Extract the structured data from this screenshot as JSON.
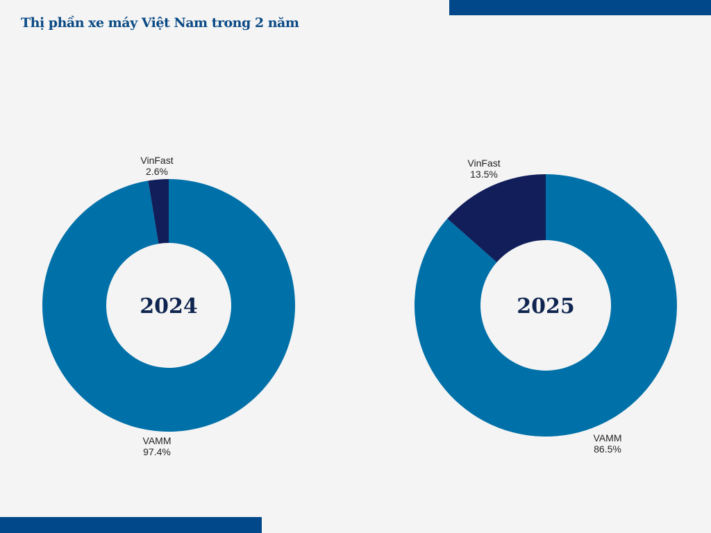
{
  "title": "Thị phần xe máy Việt Nam trong 2 năm",
  "colors": {
    "VAMM": "#0070a8",
    "VinFast": "#111e5a",
    "accent_bar": "#00488a",
    "background": "#f4f4f4"
  },
  "chart_data": [
    {
      "type": "pie",
      "donut": true,
      "center_label": "2024",
      "categories": [
        "VAMM",
        "VinFast"
      ],
      "values": [
        97.4,
        2.6
      ],
      "value_labels": [
        "97.4%",
        "2.6%"
      ]
    },
    {
      "type": "pie",
      "donut": true,
      "center_label": "2025",
      "categories": [
        "VAMM",
        "VinFast"
      ],
      "values": [
        86.5,
        13.5
      ],
      "value_labels": [
        "86.5%",
        "13.5%"
      ]
    }
  ]
}
